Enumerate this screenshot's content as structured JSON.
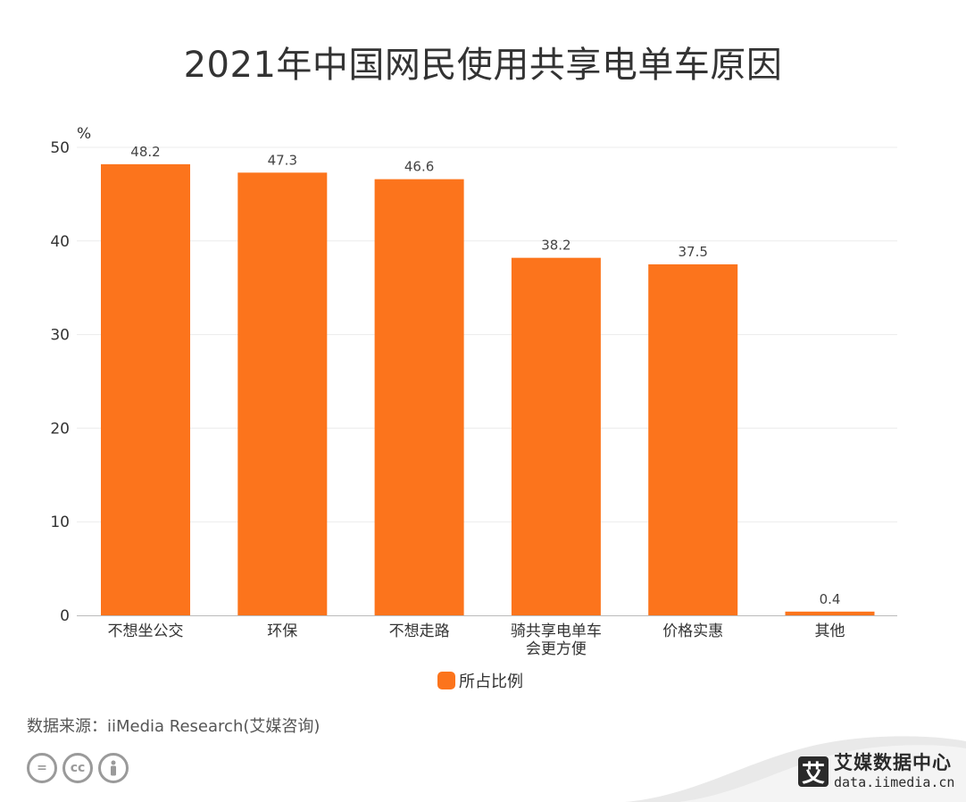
{
  "title": "2021年中国网民使用共享电单车原因",
  "chart_data": {
    "type": "bar",
    "unit_label": "%",
    "categories": [
      "不想坐公交",
      "环保",
      "不想走路",
      "骑共享电单车\n会更方便",
      "价格实惠",
      "其他"
    ],
    "series": [
      {
        "name": "所占比例",
        "values": [
          48.2,
          47.3,
          46.6,
          38.2,
          37.5,
          0.4
        ],
        "color": "#FC741C"
      }
    ],
    "value_labels": [
      "48.2",
      "47.3",
      "46.6",
      "38.2",
      "37.5",
      "0.4"
    ],
    "ylim": [
      0,
      50
    ],
    "yticks": [
      0,
      10,
      20,
      30,
      40,
      50
    ],
    "grid": true,
    "legend_position": "bottom-center"
  },
  "legend": {
    "label": "所占比例",
    "color": "#FC741C"
  },
  "source": "数据来源：iiMedia Research(艾媒咨询)",
  "footer_icons": [
    "cc-equal-icon",
    "cc-icon",
    "cc-person-icon"
  ],
  "brand": {
    "logo_char": "艾",
    "name": "艾媒数据中心",
    "url": "data.iimedia.cn"
  }
}
